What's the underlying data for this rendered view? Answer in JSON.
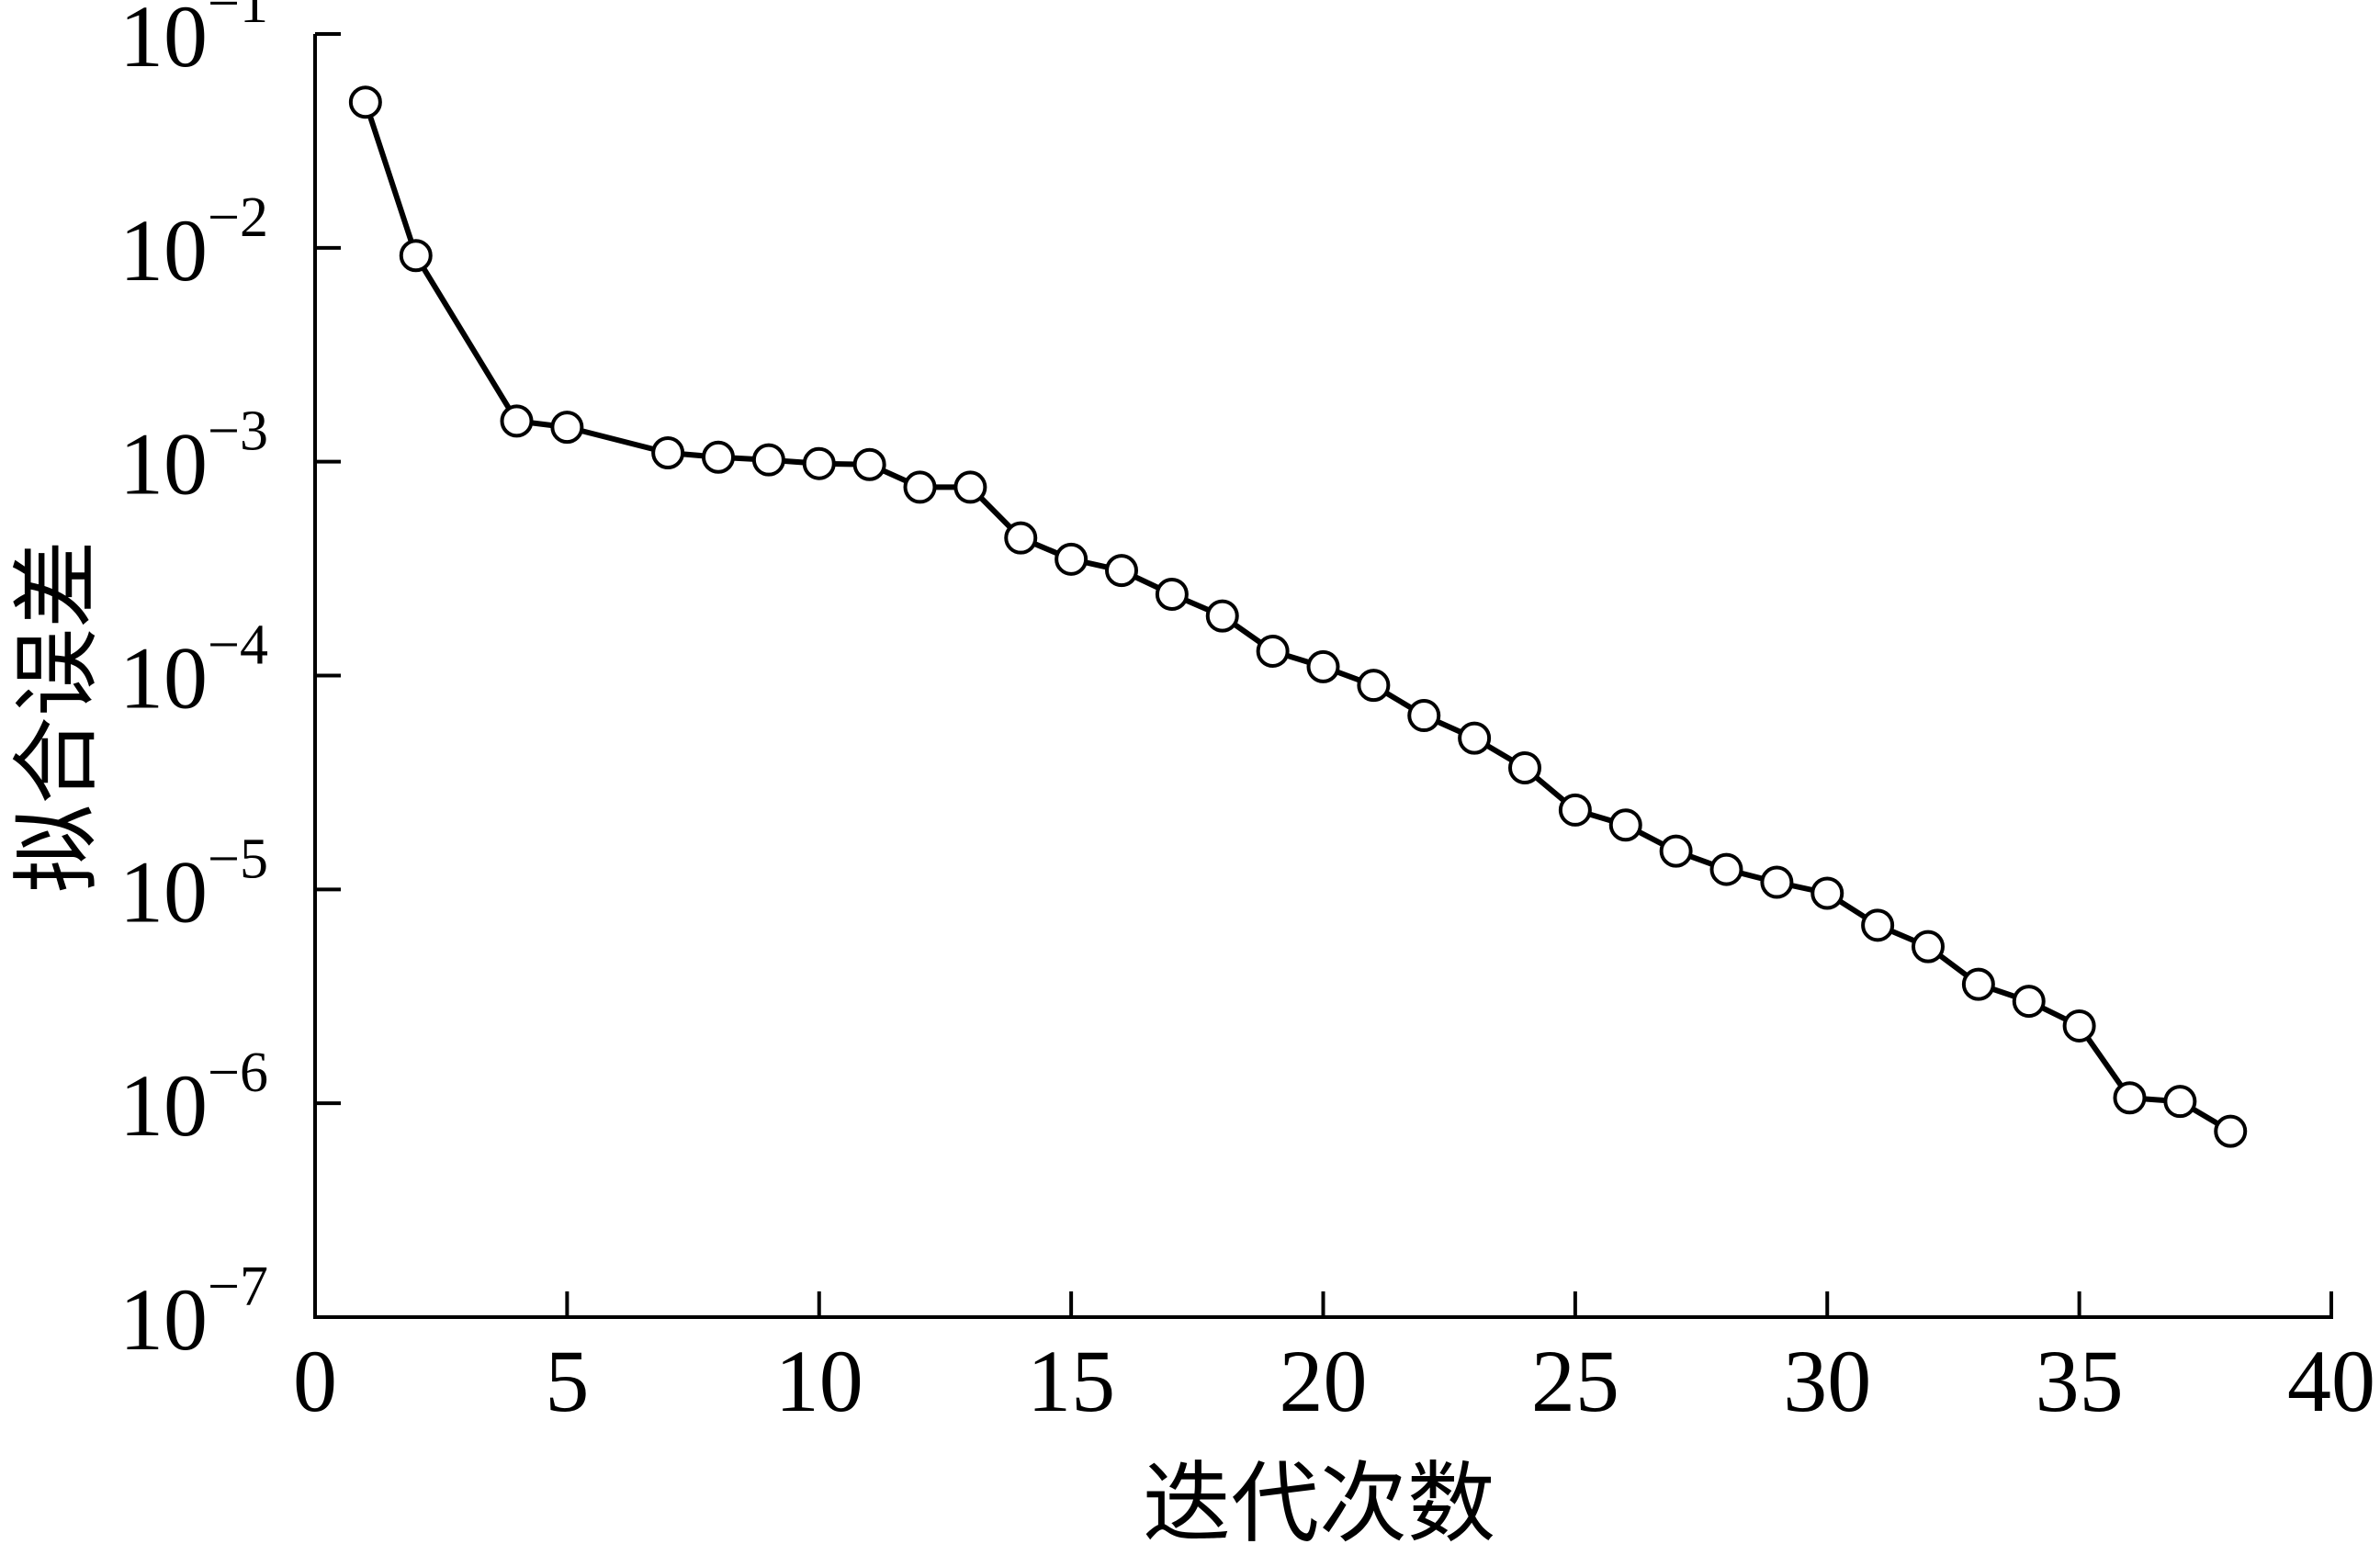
{
  "chart_data": {
    "type": "line",
    "xlabel": "迭代次数",
    "ylabel": "拟合误差",
    "xlim": [
      0,
      40
    ],
    "ylim": [
      1e-07,
      0.1
    ],
    "yscale": "log",
    "x_ticks": [
      0,
      5,
      10,
      15,
      20,
      25,
      30,
      35,
      40
    ],
    "x_tick_labels": [
      "0",
      "5",
      "10",
      "15",
      "20",
      "25",
      "30",
      "35",
      "40"
    ],
    "y_ticks": [
      {
        "value": 0.1,
        "base": "10",
        "exp": "−1"
      },
      {
        "value": 0.01,
        "base": "10",
        "exp": "−2"
      },
      {
        "value": 0.001,
        "base": "10",
        "exp": "−3"
      },
      {
        "value": 0.0001,
        "base": "10",
        "exp": "−4"
      },
      {
        "value": 1e-05,
        "base": "10",
        "exp": "−5"
      },
      {
        "value": 1e-06,
        "base": "10",
        "exp": "−6"
      },
      {
        "value": 1e-07,
        "base": "10",
        "exp": "−7"
      }
    ],
    "marker": "open-circle",
    "line_color": "#000000",
    "series": [
      {
        "x": [
          1,
          2,
          4,
          5,
          7,
          8,
          9,
          10,
          11,
          12,
          13,
          14,
          15,
          16,
          17,
          18,
          19,
          20,
          21,
          22,
          23,
          24,
          25,
          26,
          27,
          28,
          29,
          30,
          31,
          32,
          33,
          34,
          35,
          36,
          37,
          38
        ],
        "y": [
          0.048,
          0.0092,
          0.00155,
          0.00145,
          0.0011,
          0.00105,
          0.00102,
          0.00098,
          0.00097,
          0.00076,
          0.00076,
          0.00044,
          0.00035,
          0.00031,
          0.00024,
          0.00019,
          0.00013,
          0.00011,
          9e-05,
          6.5e-05,
          5.1e-05,
          3.7e-05,
          2.35e-05,
          2e-05,
          1.51e-05,
          1.24e-05,
          1.08e-05,
          9.6e-06,
          6.8e-06,
          5.4e-06,
          3.6e-06,
          3e-06,
          2.3e-06,
          1.06e-06,
          1.02e-06,
          7.4e-07
        ]
      }
    ]
  }
}
